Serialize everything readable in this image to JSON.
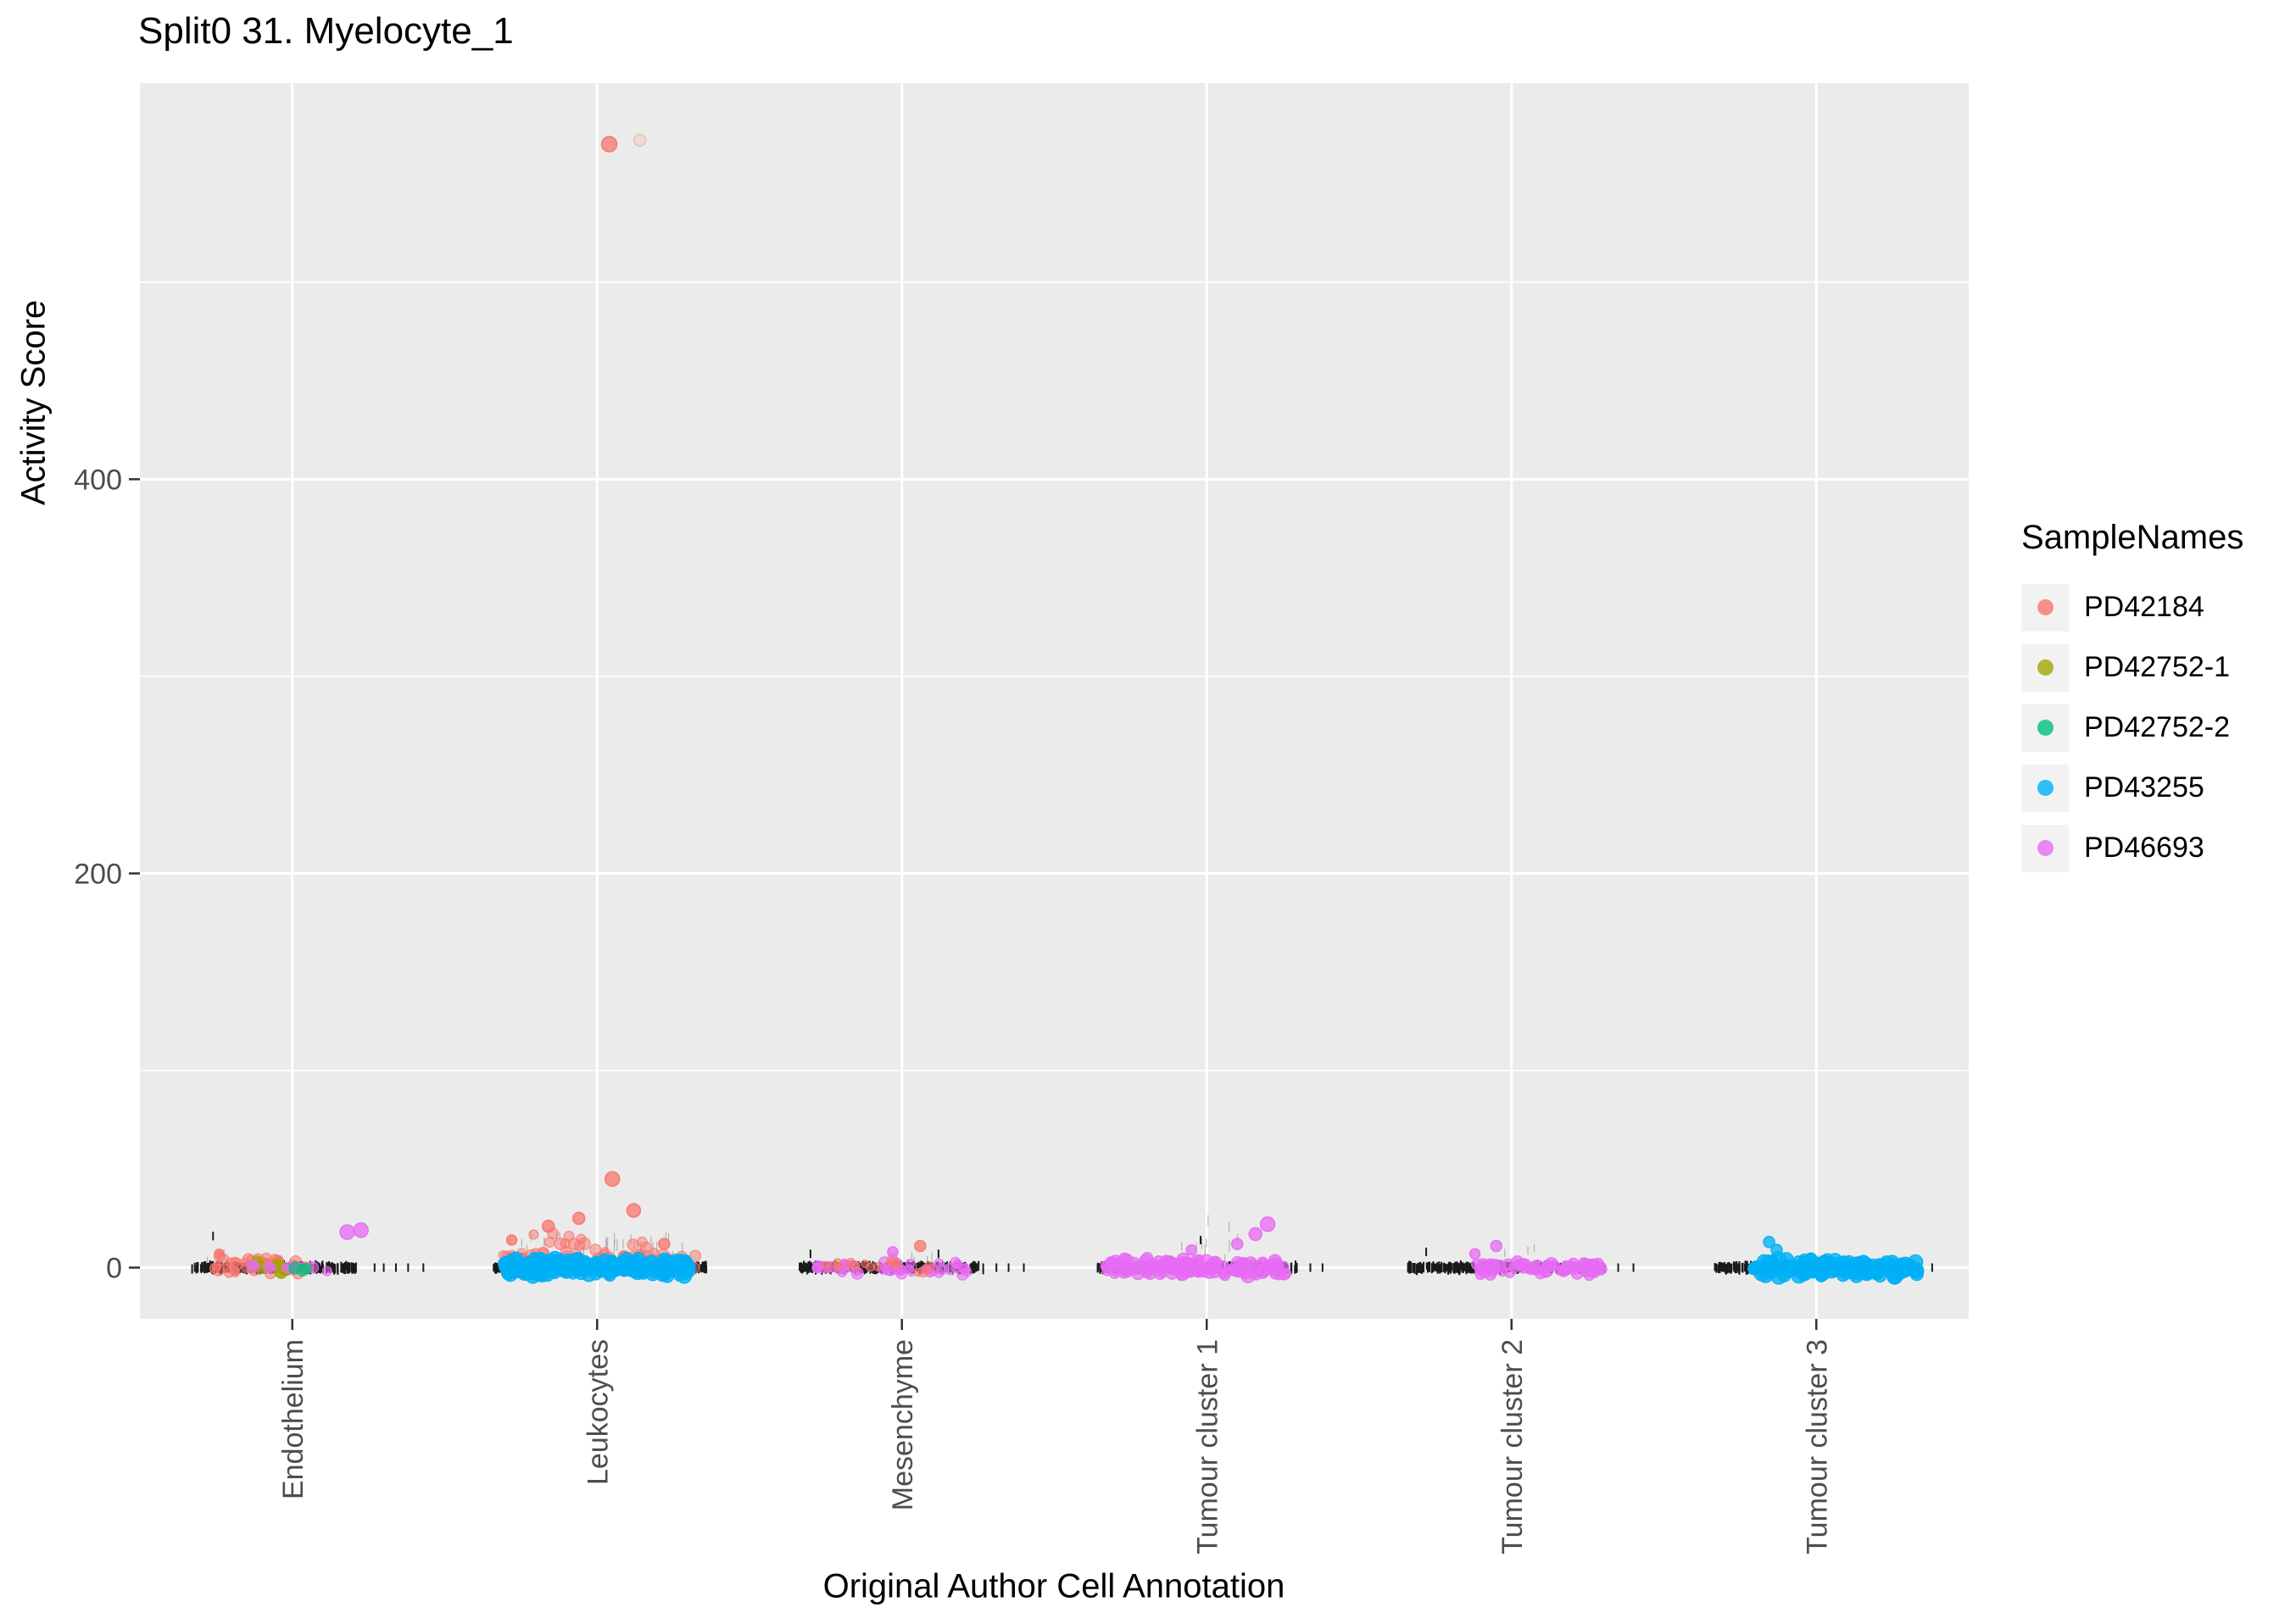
{
  "chart_data": {
    "type": "scatter",
    "title": "Split0 31. Myelocyte_1",
    "xlabel": "Original Author Cell Annotation",
    "ylabel": "Activity Score",
    "legend_title": "SampleNames",
    "legend_position": "right",
    "grid": true,
    "panel_bg": "#EBEBEB",
    "grid_color": "#FFFFFF",
    "tick_color": "#333333",
    "tick_label_color": "#4D4D4D",
    "categories": [
      "Endothelium",
      "Leukocytes",
      "Mesenchyme",
      "Tumour cluster 1",
      "Tumour cluster 2",
      "Tumour cluster 3"
    ],
    "y_ticks": [
      0,
      200,
      400
    ],
    "y_minor_ticks": [
      100,
      300,
      500
    ],
    "ylim": [
      -26,
      601
    ],
    "samples": [
      {
        "name": "PD42184",
        "color": "#F8766D"
      },
      {
        "name": "PD42752-1",
        "color": "#A3A500"
      },
      {
        "name": "PD42752-2",
        "color": "#00BF7D"
      },
      {
        "name": "PD43255",
        "color": "#00B0F6"
      },
      {
        "name": "PD46693",
        "color": "#E76BF3"
      }
    ],
    "strip_bands": [
      {
        "category": "Endothelium",
        "x_range": [
          -0.33,
          0.21
        ],
        "n": 260,
        "sparse_x": [
          0.27,
          0.3,
          0.34,
          0.38,
          0.43
        ],
        "high_ticks": [
          {
            "x": -0.26,
            "y": 16
          }
        ]
      },
      {
        "category": "Leukocytes",
        "x_range": [
          -0.34,
          0.36
        ],
        "n": 340,
        "sparse_x": [],
        "high_ticks": []
      },
      {
        "category": "Mesenchyme",
        "x_range": [
          -0.34,
          0.27
        ],
        "n": 300,
        "sparse_x": [
          0.31,
          0.35,
          0.4
        ],
        "high_ticks": [
          {
            "x": -0.3,
            "y": 7
          },
          {
            "x": 0.12,
            "y": 7
          }
        ]
      },
      {
        "category": "Tumour cluster 1",
        "x_range": [
          -0.36,
          0.3
        ],
        "n": 320,
        "sparse_x": [
          0.34,
          0.38
        ],
        "high_ticks": [
          {
            "x": -0.02,
            "y": 14
          }
        ]
      },
      {
        "category": "Tumour cluster 2",
        "x_range": [
          -0.34,
          0.31
        ],
        "n": 310,
        "sparse_x": [
          0.35,
          0.4
        ],
        "high_ticks": [
          {
            "x": -0.28,
            "y": 8
          }
        ]
      },
      {
        "category": "Tumour cluster 3",
        "x_range": [
          -0.34,
          0.34
        ],
        "n": 330,
        "sparse_x": [
          0.38
        ],
        "high_ticks": []
      }
    ],
    "whiskers": [
      {
        "category": "Endothelium",
        "n": 3,
        "x_range": [
          -0.28,
          -0.2
        ],
        "y_range": [
          5,
          13
        ]
      },
      {
        "category": "Leukocytes",
        "n": 46,
        "x_range": [
          -0.3,
          0.3
        ],
        "y_range": [
          4,
          18
        ]
      },
      {
        "category": "Mesenchyme",
        "n": 4,
        "x_range": [
          -0.1,
          0.15
        ],
        "y_range": [
          4,
          9
        ]
      },
      {
        "category": "Tumour cluster 1",
        "n": 10,
        "x_range": [
          -0.15,
          0.12
        ],
        "y_range": [
          5,
          27
        ]
      },
      {
        "category": "Tumour cluster 2",
        "n": 4,
        "x_range": [
          -0.05,
          0.12
        ],
        "y_range": [
          4,
          12
        ]
      }
    ],
    "point_clusters": [
      {
        "category": "Endothelium",
        "sample": "PD42184",
        "n": 40,
        "x_range": [
          -0.27,
          0.05
        ],
        "y_range": [
          -4,
          7
        ],
        "r_range": [
          4.5,
          7
        ],
        "alpha": 0.55
      },
      {
        "category": "Endothelium",
        "sample": "PD42752-1",
        "n": 12,
        "x_range": [
          -0.13,
          0.02
        ],
        "y_range": [
          -3,
          4
        ],
        "r_range": [
          5,
          8.5
        ],
        "alpha": 0.6
      },
      {
        "category": "Endothelium",
        "sample": "PD46693",
        "n": 9,
        "x_range": [
          -0.23,
          0.16
        ],
        "y_range": [
          -3,
          4
        ],
        "r_range": [
          4.5,
          7
        ],
        "alpha": 0.6
      },
      {
        "category": "Endothelium",
        "sample": "PD42752-2",
        "n": 3,
        "x_range": [
          0.0,
          0.08
        ],
        "y_range": [
          -2,
          2
        ],
        "r_range": [
          5,
          7.5
        ],
        "alpha": 0.6
      },
      {
        "category": "Leukocytes",
        "sample": "PD42184",
        "n": 90,
        "x_range": [
          -0.31,
          0.33
        ],
        "y_range": [
          -3,
          9
        ],
        "r_range": [
          4.5,
          7
        ],
        "alpha": 0.5
      },
      {
        "category": "Leukocytes",
        "sample": "PD42184",
        "n": 14,
        "x_range": [
          -0.22,
          0.22
        ],
        "y_range": [
          8,
          18
        ],
        "r_range": [
          5,
          7
        ],
        "alpha": 0.5
      },
      {
        "category": "Leukocytes",
        "sample": "PD43255",
        "n": 260,
        "x_range": [
          -0.3,
          0.3
        ],
        "y_range": [
          -5,
          5
        ],
        "r_range": [
          6,
          9
        ],
        "alpha": 0.8
      },
      {
        "category": "Mesenchyme",
        "sample": "PD46693",
        "n": 50,
        "x_range": [
          -0.28,
          0.23
        ],
        "y_range": [
          -4,
          4
        ],
        "r_range": [
          4.5,
          7
        ],
        "alpha": 0.6
      },
      {
        "category": "Mesenchyme",
        "sample": "PD42184",
        "n": 14,
        "x_range": [
          -0.26,
          0.12
        ],
        "y_range": [
          -3,
          5
        ],
        "r_range": [
          4.5,
          6.5
        ],
        "alpha": 0.55
      },
      {
        "category": "Tumour cluster 1",
        "sample": "PD46693",
        "n": 150,
        "x_range": [
          -0.33,
          0.26
        ],
        "y_range": [
          -5,
          5
        ],
        "r_range": [
          5,
          8
        ],
        "alpha": 0.7
      },
      {
        "category": "Tumour cluster 2",
        "sample": "PD46693",
        "n": 75,
        "x_range": [
          -0.12,
          0.3
        ],
        "y_range": [
          -4,
          4
        ],
        "r_range": [
          5,
          7.5
        ],
        "alpha": 0.7
      },
      {
        "category": "Tumour cluster 3",
        "sample": "PD43255",
        "n": 170,
        "x_range": [
          -0.21,
          0.33
        ],
        "y_range": [
          -5,
          5
        ],
        "r_range": [
          6,
          9
        ],
        "alpha": 0.8
      }
    ],
    "notable_points": [
      {
        "category": "Leukocytes",
        "sample": "PD42184",
        "x": 0.04,
        "y": 570,
        "r": 9
      },
      {
        "category": "Leukocytes",
        "sample": "PD42184",
        "x": 0.14,
        "y": 572,
        "r": 7,
        "alpha": 0.15
      },
      {
        "category": "Leukocytes",
        "sample": "PD42184",
        "x": 0.05,
        "y": 45,
        "r": 8.5
      },
      {
        "category": "Leukocytes",
        "sample": "PD42184",
        "x": 0.12,
        "y": 29,
        "r": 8
      },
      {
        "category": "Leukocytes",
        "sample": "PD42184",
        "x": -0.06,
        "y": 25,
        "r": 7
      },
      {
        "category": "Leukocytes",
        "sample": "PD42184",
        "x": -0.16,
        "y": 21,
        "r": 7
      },
      {
        "category": "Leukocytes",
        "sample": "PD42184",
        "x": -0.28,
        "y": 14,
        "r": 6
      },
      {
        "category": "Leukocytes",
        "sample": "PD42184",
        "x": 0.22,
        "y": 12,
        "r": 6.5
      },
      {
        "category": "Endothelium",
        "sample": "PD46693",
        "x": 0.18,
        "y": 18,
        "r": 8.5
      },
      {
        "category": "Endothelium",
        "sample": "PD46693",
        "x": 0.225,
        "y": 19,
        "r": 8.5
      },
      {
        "category": "Endothelium",
        "sample": "PD42184",
        "x": -0.24,
        "y": 7,
        "r": 5.5
      },
      {
        "category": "Mesenchyme",
        "sample": "PD42184",
        "x": 0.06,
        "y": 11,
        "r": 6.5
      },
      {
        "category": "Mesenchyme",
        "sample": "PD46693",
        "x": -0.03,
        "y": 8,
        "r": 6
      },
      {
        "category": "Tumour cluster 1",
        "sample": "PD46693",
        "x": 0.2,
        "y": 22,
        "r": 8.5
      },
      {
        "category": "Tumour cluster 1",
        "sample": "PD46693",
        "x": 0.16,
        "y": 17,
        "r": 7.5
      },
      {
        "category": "Tumour cluster 1",
        "sample": "PD46693",
        "x": 0.1,
        "y": 12,
        "r": 6.5
      },
      {
        "category": "Tumour cluster 1",
        "sample": "PD46693",
        "x": -0.05,
        "y": 9,
        "r": 6
      },
      {
        "category": "Tumour cluster 2",
        "sample": "PD46693",
        "x": -0.05,
        "y": 11,
        "r": 6.5
      },
      {
        "category": "Tumour cluster 2",
        "sample": "PD46693",
        "x": -0.12,
        "y": 7,
        "r": 6
      },
      {
        "category": "Tumour cluster 3",
        "sample": "PD43255",
        "x": -0.155,
        "y": 13,
        "r": 6.5
      },
      {
        "category": "Tumour cluster 3",
        "sample": "PD43255",
        "x": -0.13,
        "y": 9,
        "r": 6.5
      }
    ]
  }
}
